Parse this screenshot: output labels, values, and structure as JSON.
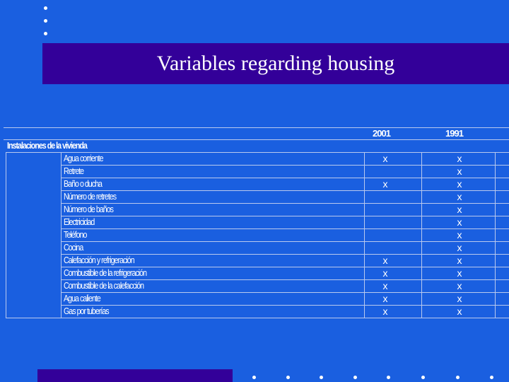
{
  "slide": {
    "title": "Variables regarding housing"
  },
  "table": {
    "year_headers": [
      "2001",
      "1991"
    ],
    "section_header": "Instalaciones de la vivienda",
    "rows": [
      {
        "label": "Agua corriente",
        "y2001": "x",
        "y1991": "x"
      },
      {
        "label": "Retrete",
        "y2001": "",
        "y1991": "x"
      },
      {
        "label": "Baño o ducha",
        "y2001": "x",
        "y1991": "x"
      },
      {
        "label": "Número de retretes",
        "y2001": "",
        "y1991": "x"
      },
      {
        "label": "Número de baños",
        "y2001": "",
        "y1991": "x"
      },
      {
        "label": "Electricidad",
        "y2001": "",
        "y1991": "x"
      },
      {
        "label": "Teléfono",
        "y2001": "",
        "y1991": "x"
      },
      {
        "label": "Cocina",
        "y2001": "",
        "y1991": "x"
      },
      {
        "label": "Calefacción y refrigeración",
        "y2001": "x",
        "y1991": "x"
      },
      {
        "label": "Combustible de la refrigeración",
        "y2001": "x",
        "y1991": "x"
      },
      {
        "label": "Combustible de la calefacción",
        "y2001": "x",
        "y1991": "x"
      },
      {
        "label": "Agua caliente",
        "y2001": "x",
        "y1991": "x"
      },
      {
        "label": "Gas por tuberías",
        "y2001": "x",
        "y1991": "x"
      }
    ]
  },
  "colors": {
    "background": "#1a5fe0",
    "title_bar": "#330099",
    "grid": "#b9c9ee",
    "text": "#ffffff"
  }
}
